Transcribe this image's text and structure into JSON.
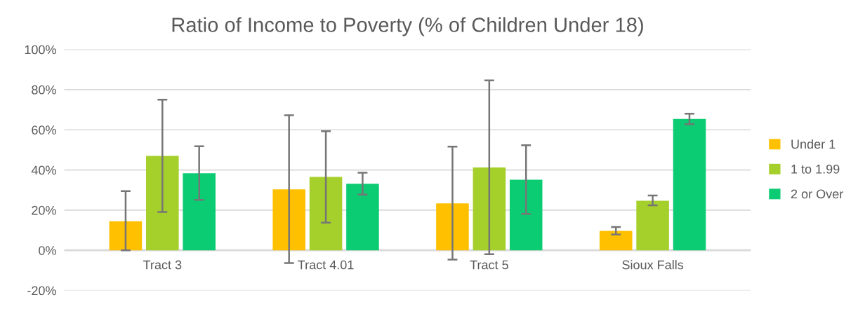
{
  "chart_data": {
    "type": "bar",
    "title": "Ratio of Income to Poverty (% of Children Under 18)",
    "categories": [
      "Tract 3",
      "Tract 4.01",
      "Tract 5",
      "Sioux Falls"
    ],
    "series": [
      {
        "name": "Under 1",
        "color": "#ffc000",
        "values": [
          14.5,
          30.3,
          23.4,
          9.7
        ],
        "errors": [
          [
            0,
            29.5
          ],
          [
            -6.4,
            67.2
          ],
          [
            -4.6,
            51.6
          ],
          [
            7.8,
            11.6
          ]
        ]
      },
      {
        "name": "1 to 1.99",
        "color": "#a5cf2a",
        "values": [
          47.0,
          36.5,
          41.2,
          24.7
        ],
        "errors": [
          [
            19.1,
            75.0
          ],
          [
            13.8,
            59.3
          ],
          [
            -1.9,
            84.6
          ],
          [
            22.4,
            27.3
          ]
        ]
      },
      {
        "name": "2 or Over",
        "color": "#0bcb73",
        "values": [
          38.4,
          33.1,
          35.1,
          65.4
        ],
        "errors": [
          [
            25.1,
            51.8
          ],
          [
            27.7,
            38.6
          ],
          [
            18.1,
            52.3
          ],
          [
            62.8,
            68.0
          ]
        ]
      }
    ],
    "ylim": [
      -20,
      100
    ],
    "yticks": [
      {
        "value": -20,
        "label": "-20%"
      },
      {
        "value": 0,
        "label": "0%"
      },
      {
        "value": 20,
        "label": "20%"
      },
      {
        "value": 40,
        "label": "40%"
      },
      {
        "value": 60,
        "label": "60%"
      },
      {
        "value": 80,
        "label": "80%"
      },
      {
        "value": 100,
        "label": "100%"
      }
    ],
    "grid": "y",
    "legend": "right"
  }
}
